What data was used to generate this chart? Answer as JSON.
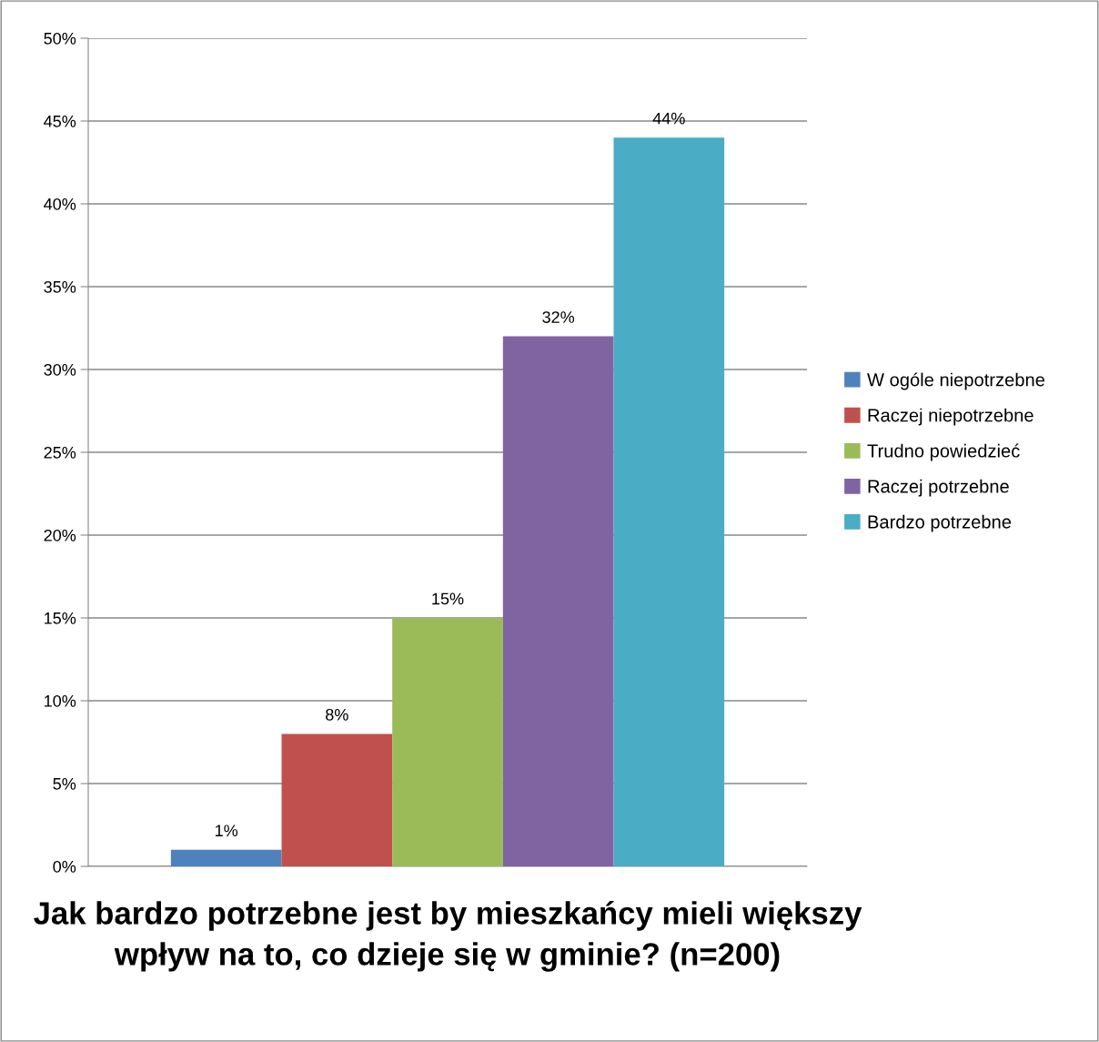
{
  "chart_data": {
    "type": "bar",
    "title": "Jak bardzo potrzebne jest by mieszkańcy mieli większy wpływ na to, co dzieje się w gminie? (n=200)",
    "categories": [
      null
    ],
    "series": [
      {
        "name": "W ogóle niepotrzebne",
        "color": "#4f81bd",
        "values": [
          1
        ],
        "value_labels": [
          "1%"
        ]
      },
      {
        "name": "Raczej niepotrzebne",
        "color": "#c0504d",
        "values": [
          8
        ],
        "value_labels": [
          "8%"
        ]
      },
      {
        "name": "Trudno powiedzieć",
        "color": "#9bbb59",
        "values": [
          15
        ],
        "value_labels": [
          "15%"
        ]
      },
      {
        "name": "Raczej potrzebne",
        "color": "#8064a2",
        "values": [
          32
        ],
        "value_labels": [
          "32%"
        ]
      },
      {
        "name": "Bardzo potrzebne",
        "color": "#4bacc6",
        "values": [
          44
        ],
        "value_labels": [
          "44%"
        ]
      }
    ],
    "ylim": [
      0,
      50
    ],
    "yticks": [
      {
        "value": 0,
        "label": "0%"
      },
      {
        "value": 5,
        "label": "5%"
      },
      {
        "value": 10,
        "label": "10%"
      },
      {
        "value": 15,
        "label": "15%"
      },
      {
        "value": 20,
        "label": "20%"
      },
      {
        "value": 25,
        "label": "25%"
      },
      {
        "value": 30,
        "label": "30%"
      },
      {
        "value": 35,
        "label": "35%"
      },
      {
        "value": 40,
        "label": "40%"
      },
      {
        "value": 45,
        "label": "45%"
      },
      {
        "value": 50,
        "label": "50%"
      }
    ],
    "grid": "y",
    "legend": "right"
  }
}
